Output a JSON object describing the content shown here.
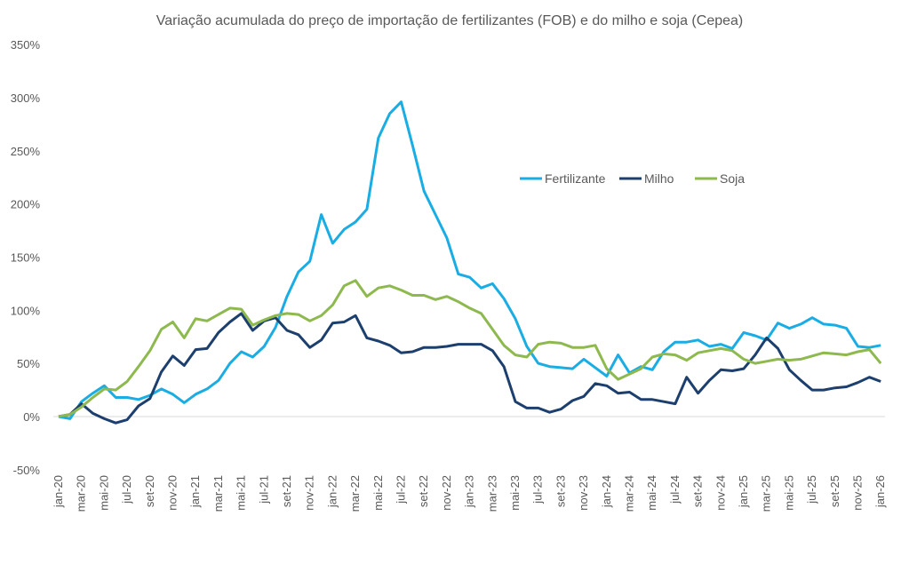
{
  "chart_data": {
    "type": "line",
    "title": "Variação acumulada do preço de importação de fertilizantes (FOB) e do milho e soja (Cepea)",
    "xlabel": "",
    "ylabel": "",
    "ylim": [
      -50,
      350
    ],
    "yticks": [
      "-50%",
      "0%",
      "50%",
      "100%",
      "150%",
      "200%",
      "250%",
      "300%",
      "350%"
    ],
    "ytick_values": [
      -50,
      0,
      50,
      100,
      150,
      200,
      250,
      300,
      350
    ],
    "x_tick_labels": [
      "jan-20",
      "mar-20",
      "mai-20",
      "jul-20",
      "set-20",
      "nov-20",
      "jan-21",
      "mar-21",
      "mai-21",
      "jul-21",
      "set-21",
      "nov-21",
      "jan-22",
      "mar-22",
      "mai-22",
      "jul-22",
      "set-22",
      "nov-22",
      "jan-23",
      "mar-23",
      "mai-23",
      "jul-23",
      "set-23",
      "nov-23",
      "jan-24",
      "mar-24",
      "mai-24",
      "jul-24",
      "set-24",
      "nov-24",
      "jan-25",
      "mar-25",
      "mai-25",
      "jul-25",
      "set-25",
      "nov-25",
      "jan-26"
    ],
    "x_tick_every_months": 2,
    "grid": false,
    "legend_position": "upper-right-center",
    "series": [
      {
        "name": "Fertilizante",
        "color": "#1AADE4",
        "values": [
          0,
          -2,
          14,
          22,
          29,
          18,
          18,
          16,
          20,
          26,
          21,
          13,
          21,
          26,
          34,
          50,
          61,
          56,
          66,
          84,
          113,
          136,
          146,
          190,
          163,
          176,
          183,
          195,
          262,
          285,
          296,
          255,
          212,
          190,
          168,
          134,
          131,
          121,
          125,
          111,
          92,
          66,
          50,
          47,
          46,
          45,
          54,
          46,
          38,
          58,
          41,
          47,
          44,
          61,
          70,
          70,
          72,
          66,
          68,
          64,
          79,
          76,
          72,
          88,
          83,
          87,
          93,
          87,
          86,
          83,
          66,
          65,
          67
        ]
      },
      {
        "name": "Milho",
        "color": "#1C3F6E",
        "values": [
          0,
          2,
          12,
          3,
          -2,
          -6,
          -3,
          10,
          17,
          42,
          57,
          48,
          63,
          64,
          79,
          89,
          97,
          81,
          90,
          93,
          81,
          77,
          65,
          72,
          88,
          89,
          95,
          74,
          71,
          67,
          60,
          61,
          65,
          65,
          66,
          68,
          68,
          68,
          62,
          47,
          14,
          8,
          8,
          4,
          7,
          15,
          19,
          31,
          29,
          22,
          23,
          16,
          16,
          14,
          12,
          37,
          22,
          34,
          44,
          43,
          45,
          58,
          74,
          64,
          44,
          34,
          25,
          25,
          27,
          28,
          32,
          37,
          33
        ]
      },
      {
        "name": "Soja",
        "color": "#8DB94E",
        "values": [
          0,
          2,
          9,
          18,
          26,
          25,
          33,
          47,
          62,
          82,
          89,
          74,
          92,
          90,
          96,
          102,
          101,
          86,
          91,
          95,
          97,
          96,
          90,
          95,
          105,
          123,
          128,
          113,
          121,
          123,
          119,
          114,
          114,
          110,
          113,
          108,
          102,
          97,
          82,
          67,
          58,
          56,
          68,
          70,
          69,
          65,
          65,
          67,
          45,
          35,
          40,
          45,
          56,
          59,
          58,
          53,
          60,
          62,
          64,
          62,
          54,
          50,
          52,
          54,
          53,
          54,
          57,
          60,
          59,
          58,
          61,
          63,
          50
        ]
      }
    ]
  }
}
